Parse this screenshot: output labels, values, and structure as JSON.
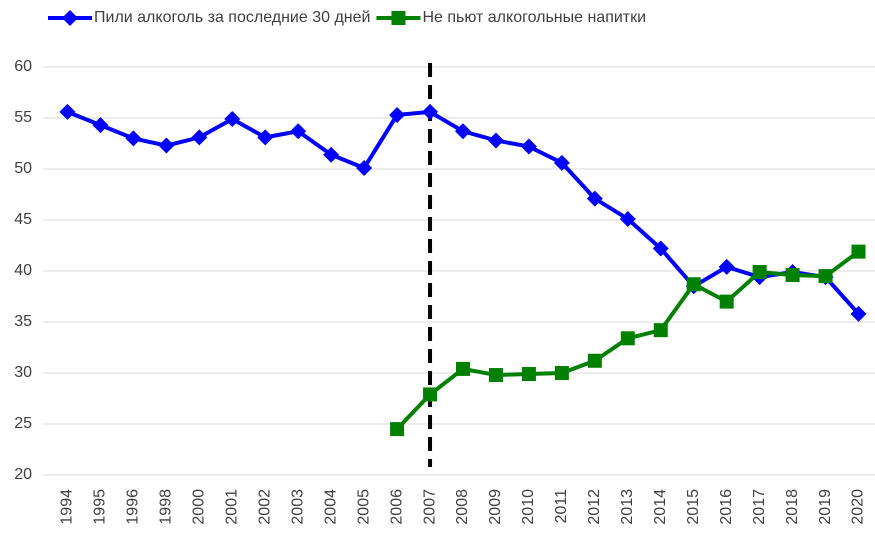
{
  "chart_data": {
    "type": "line",
    "categories": [
      "1994",
      "1995",
      "1996",
      "1998",
      "2000",
      "2001",
      "2002",
      "2003",
      "2004",
      "2005",
      "2006",
      "2007",
      "2008",
      "2009",
      "2010",
      "2011",
      "2012",
      "2013",
      "2014",
      "2015",
      "2016",
      "2017",
      "2018",
      "2019",
      "2020"
    ],
    "series": [
      {
        "name": "Пили алкоголь за последние 30 дней",
        "color": "#0000ff",
        "marker": "diamond",
        "values": [
          55.6,
          54.3,
          53.0,
          52.3,
          53.1,
          54.9,
          53.1,
          53.7,
          51.4,
          50.1,
          55.3,
          55.6,
          53.7,
          52.8,
          52.2,
          50.6,
          47.1,
          45.1,
          42.2,
          38.5,
          40.4,
          39.4,
          39.9,
          39.4,
          35.8
        ]
      },
      {
        "name": "Не пьют алкогольные напитки",
        "color": "#008000",
        "marker": "square",
        "values": [
          null,
          null,
          null,
          null,
          null,
          null,
          null,
          null,
          null,
          null,
          24.5,
          27.9,
          30.4,
          29.8,
          29.9,
          30.0,
          31.2,
          33.4,
          34.2,
          38.7,
          37.0,
          39.9,
          39.6,
          39.5,
          41.9
        ]
      }
    ],
    "ylim": [
      20,
      60
    ],
    "yticks": [
      20,
      25,
      30,
      35,
      40,
      45,
      50,
      55,
      60
    ],
    "grid": true,
    "legend": "top"
  }
}
